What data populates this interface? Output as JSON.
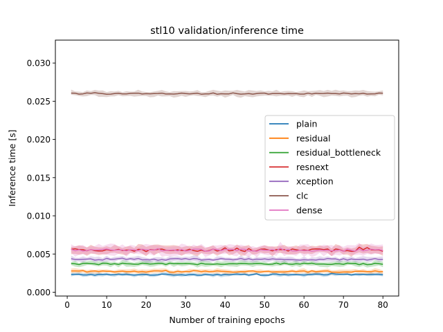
{
  "chart_data": {
    "type": "line",
    "title": "stl10 validation/inference time",
    "xlabel": "Number of training epochs",
    "ylabel": "Inference time [s]",
    "xlim": [
      -3,
      84
    ],
    "ylim": [
      -0.0005,
      0.033
    ],
    "xticks": [
      0,
      10,
      20,
      30,
      40,
      50,
      60,
      70,
      80
    ],
    "yticks": [
      0.0,
      0.005,
      0.01,
      0.015,
      0.02,
      0.025,
      0.03
    ],
    "ytick_labels": [
      "0.000",
      "0.005",
      "0.010",
      "0.015",
      "0.020",
      "0.025",
      "0.030"
    ],
    "grid": false,
    "legend_position": "center-right",
    "epochs": {
      "start": 1,
      "end": 80
    },
    "series": [
      {
        "name": "plain",
        "color": "#1f77b4",
        "mean": 0.0023,
        "band": 0.0002,
        "noise": 8e-05
      },
      {
        "name": "residual",
        "color": "#ff7f0e",
        "mean": 0.0027,
        "band": 0.00025,
        "noise": 0.0001
      },
      {
        "name": "residual_bottleneck",
        "color": "#2ca02c",
        "mean": 0.0037,
        "band": 0.0003,
        "noise": 0.0001
      },
      {
        "name": "resnext",
        "color": "#d62728",
        "mean": 0.0055,
        "band": 0.0005,
        "noise": 0.00018
      },
      {
        "name": "xception",
        "color": "#9467bd",
        "mean": 0.0043,
        "band": 0.0003,
        "noise": 0.00012
      },
      {
        "name": "clc",
        "color": "#8c564b",
        "mean": 0.026,
        "band": 0.00035,
        "noise": 8e-05
      },
      {
        "name": "dense",
        "color": "#e377c2",
        "mean": 0.0055,
        "band": 0.0006,
        "noise": 0.00015
      }
    ]
  }
}
